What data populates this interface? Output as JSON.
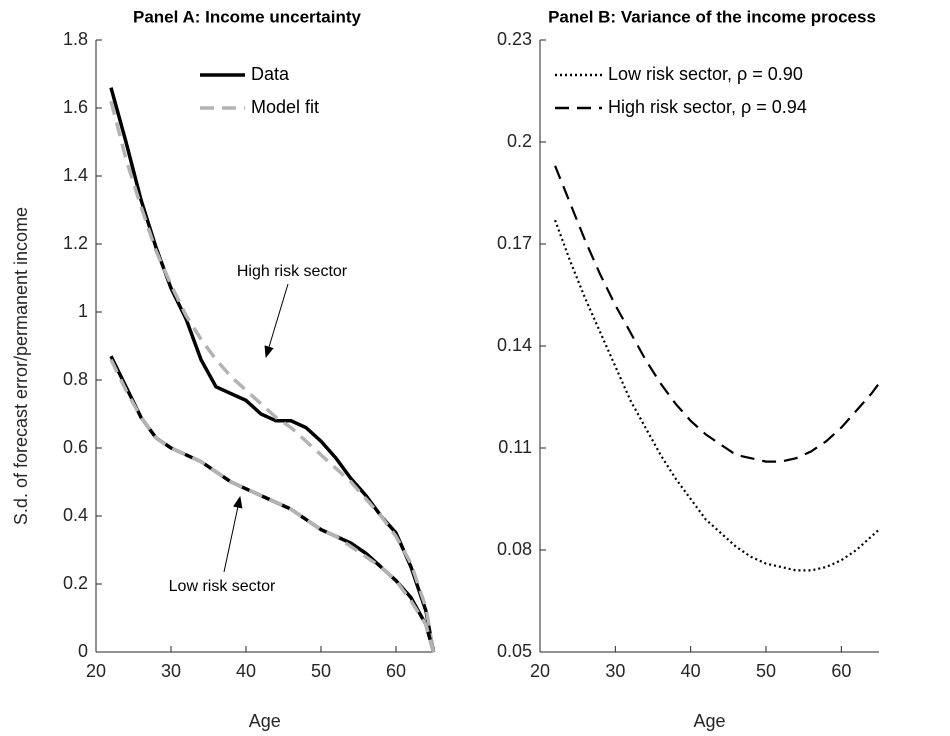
{
  "chart_data": [
    {
      "type": "line",
      "title": "Panel A: Income uncertainty",
      "xlabel": "Age",
      "ylabel": "S.d. of forecast error/permanent income",
      "x": [
        22,
        24,
        26,
        28,
        30,
        32,
        34,
        36,
        38,
        40,
        42,
        44,
        46,
        48,
        50,
        52,
        54,
        56,
        58,
        60,
        62,
        64,
        65
      ],
      "series": [
        {
          "name": "Data",
          "color": "#000000",
          "style": "solid",
          "values": [
            1.66,
            1.5,
            1.33,
            1.19,
            1.07,
            0.98,
            0.86,
            0.78,
            0.76,
            0.74,
            0.7,
            0.68,
            0.68,
            0.66,
            0.62,
            0.57,
            0.51,
            0.46,
            0.4,
            0.35,
            0.25,
            0.12,
            0
          ]
        },
        {
          "name": "Model fit",
          "color": "#b3b3b3",
          "style": "dashed",
          "values": [
            1.62,
            1.45,
            1.31,
            1.18,
            1.08,
            0.99,
            0.92,
            0.86,
            0.81,
            0.77,
            0.73,
            0.69,
            0.66,
            0.62,
            0.58,
            0.54,
            0.5,
            0.45,
            0.4,
            0.34,
            0.26,
            0.13,
            0
          ]
        },
        {
          "name": "Data",
          "color": "#000000",
          "style": "solid",
          "values": [
            0.87,
            0.78,
            0.69,
            0.63,
            0.6,
            0.58,
            0.56,
            0.53,
            0.5,
            0.48,
            0.46,
            0.44,
            0.42,
            0.39,
            0.36,
            0.34,
            0.32,
            0.29,
            0.25,
            0.21,
            0.16,
            0.08,
            0
          ]
        },
        {
          "name": "Model fit",
          "color": "#b3b3b3",
          "style": "dashed",
          "values": [
            0.86,
            0.77,
            0.69,
            0.63,
            0.6,
            0.58,
            0.56,
            0.53,
            0.5,
            0.48,
            0.46,
            0.44,
            0.42,
            0.39,
            0.36,
            0.34,
            0.31,
            0.28,
            0.25,
            0.21,
            0.15,
            0.08,
            0
          ]
        }
      ],
      "annotations": [
        {
          "text": "High risk sector"
        },
        {
          "text": "Low risk sector"
        }
      ],
      "xlim": [
        20,
        65
      ],
      "xticks": [
        20,
        30,
        40,
        50,
        60
      ],
      "ylim": [
        0,
        1.8
      ],
      "yticks": [
        0,
        0.2,
        0.4,
        0.6,
        0.8,
        1,
        1.2,
        1.4,
        1.6,
        1.8
      ],
      "legend": "upper center"
    },
    {
      "type": "line",
      "title": "Panel B: Variance of the income process",
      "xlabel": "Age",
      "x": [
        22,
        24,
        26,
        28,
        30,
        32,
        34,
        36,
        38,
        40,
        42,
        44,
        46,
        48,
        50,
        52,
        54,
        56,
        58,
        60,
        62,
        64,
        65
      ],
      "series": [
        {
          "name": "Low risk sector, ρ = 0.90",
          "color": "#000000",
          "style": "dotted",
          "values": [
            0.177,
            0.165,
            0.154,
            0.144,
            0.134,
            0.124,
            0.116,
            0.108,
            0.101,
            0.095,
            0.089,
            0.085,
            0.081,
            0.078,
            0.076,
            0.075,
            0.074,
            0.074,
            0.075,
            0.077,
            0.08,
            0.084,
            0.086
          ]
        },
        {
          "name": "High risk sector, ρ = 0.94",
          "color": "#000000",
          "style": "dashed",
          "values": [
            0.193,
            0.182,
            0.171,
            0.161,
            0.152,
            0.144,
            0.136,
            0.129,
            0.123,
            0.118,
            0.114,
            0.111,
            0.108,
            0.107,
            0.106,
            0.106,
            0.107,
            0.109,
            0.112,
            0.116,
            0.121,
            0.126,
            0.129
          ]
        }
      ],
      "xlim": [
        20,
        65
      ],
      "xticks": [
        20,
        30,
        40,
        50,
        60
      ],
      "ylim": [
        0.05,
        0.23
      ],
      "yticks": [
        0.05,
        0.08,
        0.11,
        0.14,
        0.17,
        0.2,
        0.23
      ],
      "legend": "upper left"
    }
  ]
}
